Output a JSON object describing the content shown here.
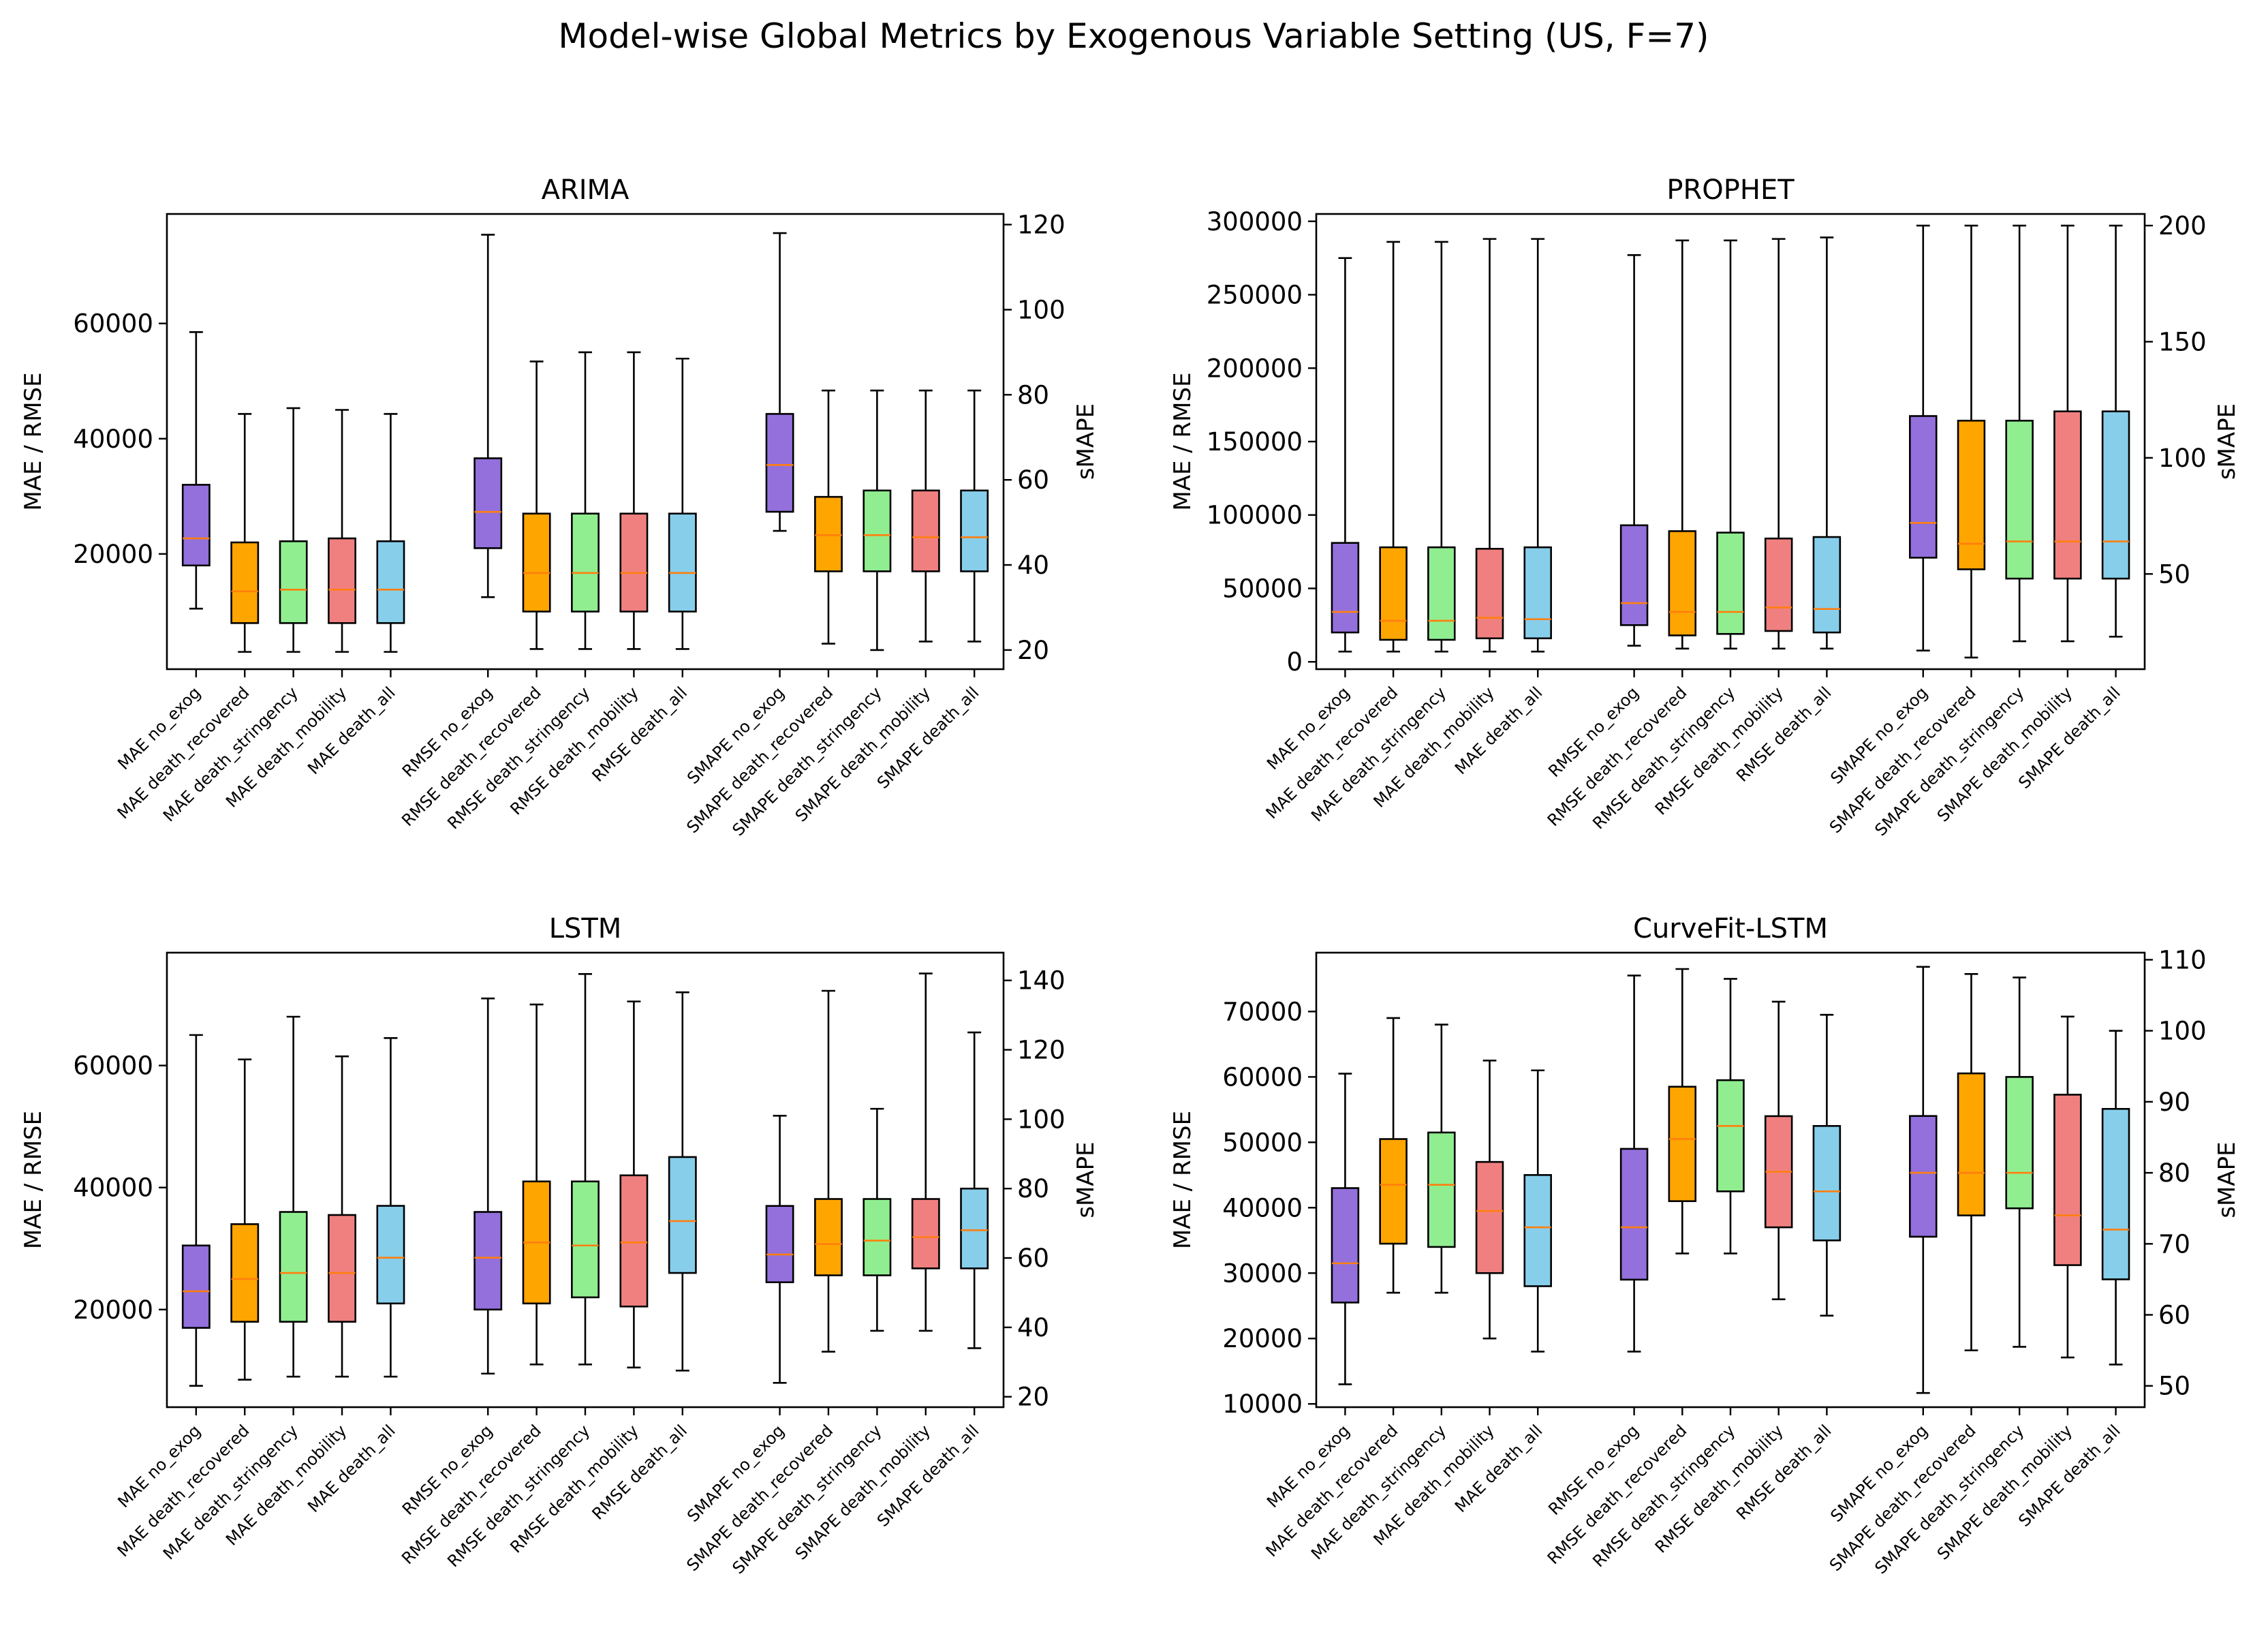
{
  "figure": {
    "title": "Model-wise Global Metrics by Exogenous Variable Setting (US, F=7)"
  },
  "chart_data": [
    {
      "type": "box",
      "title": "ARIMA",
      "ylabel": "MAE / RMSE",
      "y2label": "sMAPE",
      "ylim": [
        0,
        79000
      ],
      "yticks": [
        20000,
        40000,
        60000
      ],
      "y2lim": [
        15.5,
        122.5
      ],
      "y2ticks": [
        20,
        40,
        60,
        80,
        100,
        120
      ],
      "groups": [
        {
          "axis": "left",
          "boxes": [
            {
              "label": "MAE no_exog",
              "color": "#9370db",
              "whislo": 10500,
              "q1": 18000,
              "med": 22700,
              "q3": 32000,
              "whishi": 58500
            },
            {
              "label": "MAE death_recovered",
              "color": "#ffa500",
              "whislo": 3000,
              "q1": 8000,
              "med": 13500,
              "q3": 22000,
              "whishi": 44300
            },
            {
              "label": "MAE death_stringency",
              "color": "#90ee90",
              "whislo": 3000,
              "q1": 8000,
              "med": 13800,
              "q3": 22200,
              "whishi": 45300
            },
            {
              "label": "MAE death_mobility",
              "color": "#f08080",
              "whislo": 3000,
              "q1": 8000,
              "med": 13800,
              "q3": 22700,
              "whishi": 45000
            },
            {
              "label": "MAE death_all",
              "color": "#87ceeb",
              "whislo": 3000,
              "q1": 8000,
              "med": 13800,
              "q3": 22200,
              "whishi": 44300
            }
          ]
        },
        {
          "axis": "left",
          "boxes": [
            {
              "label": "RMSE no_exog",
              "color": "#9370db",
              "whislo": 12500,
              "q1": 21000,
              "med": 27300,
              "q3": 36600,
              "whishi": 75400
            },
            {
              "label": "RMSE death_recovered",
              "color": "#ffa500",
              "whislo": 3500,
              "q1": 10000,
              "med": 16700,
              "q3": 27000,
              "whishi": 53400
            },
            {
              "label": "RMSE death_stringency",
              "color": "#90ee90",
              "whislo": 3500,
              "q1": 10000,
              "med": 16700,
              "q3": 27000,
              "whishi": 55000
            },
            {
              "label": "RMSE death_mobility",
              "color": "#f08080",
              "whislo": 3500,
              "q1": 10000,
              "med": 16700,
              "q3": 27000,
              "whishi": 55000
            },
            {
              "label": "RMSE death_all",
              "color": "#87ceeb",
              "whislo": 3500,
              "q1": 10000,
              "med": 16700,
              "q3": 27000,
              "whishi": 53900
            }
          ]
        },
        {
          "axis": "right",
          "boxes": [
            {
              "label": "SMAPE no_exog",
              "color": "#9370db",
              "whislo": 48,
              "q1": 52.5,
              "med": 63.5,
              "q3": 75.5,
              "whishi": 118
            },
            {
              "label": "SMAPE death_recovered",
              "color": "#ffa500",
              "whislo": 21.5,
              "q1": 38.5,
              "med": 47,
              "q3": 56,
              "whishi": 81
            },
            {
              "label": "SMAPE death_stringency",
              "color": "#90ee90",
              "whislo": 20,
              "q1": 38.5,
              "med": 47,
              "q3": 57.5,
              "whishi": 81
            },
            {
              "label": "SMAPE death_mobility",
              "color": "#f08080",
              "whislo": 22,
              "q1": 38.5,
              "med": 46.5,
              "q3": 57.5,
              "whishi": 81
            },
            {
              "label": "SMAPE death_all",
              "color": "#87ceeb",
              "whislo": 22,
              "q1": 38.5,
              "med": 46.5,
              "q3": 57.5,
              "whishi": 81
            }
          ]
        }
      ]
    },
    {
      "type": "box",
      "title": "PROPHET",
      "ylabel": "MAE / RMSE",
      "y2label": "sMAPE",
      "ylim": [
        -5000,
        305000
      ],
      "yticks": [
        0,
        50000,
        100000,
        150000,
        200000,
        250000,
        300000
      ],
      "y2lim": [
        9,
        205
      ],
      "y2ticks": [
        50,
        100,
        150,
        200
      ],
      "groups": [
        {
          "axis": "left",
          "boxes": [
            {
              "label": "MAE no_exog",
              "color": "#9370db",
              "whislo": 7000,
              "q1": 20000,
              "med": 34000,
              "q3": 81000,
              "whishi": 275000
            },
            {
              "label": "MAE death_recovered",
              "color": "#ffa500",
              "whislo": 7000,
              "q1": 15000,
              "med": 28000,
              "q3": 78000,
              "whishi": 286000
            },
            {
              "label": "MAE death_stringency",
              "color": "#90ee90",
              "whislo": 7000,
              "q1": 15000,
              "med": 28000,
              "q3": 78000,
              "whishi": 286000
            },
            {
              "label": "MAE death_mobility",
              "color": "#f08080",
              "whislo": 7000,
              "q1": 16000,
              "med": 30000,
              "q3": 77000,
              "whishi": 288000
            },
            {
              "label": "MAE death_all",
              "color": "#87ceeb",
              "whislo": 7000,
              "q1": 16000,
              "med": 29000,
              "q3": 78000,
              "whishi": 288000
            }
          ]
        },
        {
          "axis": "left",
          "boxes": [
            {
              "label": "RMSE no_exog",
              "color": "#9370db",
              "whislo": 11000,
              "q1": 25000,
              "med": 40000,
              "q3": 93000,
              "whishi": 277000
            },
            {
              "label": "RMSE death_recovered",
              "color": "#ffa500",
              "whislo": 9000,
              "q1": 18000,
              "med": 34000,
              "q3": 89000,
              "whishi": 287000
            },
            {
              "label": "RMSE death_stringency",
              "color": "#90ee90",
              "whislo": 9000,
              "q1": 19000,
              "med": 34000,
              "q3": 88000,
              "whishi": 287000
            },
            {
              "label": "RMSE death_mobility",
              "color": "#f08080",
              "whislo": 9000,
              "q1": 21000,
              "med": 37000,
              "q3": 84000,
              "whishi": 288000
            },
            {
              "label": "RMSE death_all",
              "color": "#87ceeb",
              "whislo": 9000,
              "q1": 20000,
              "med": 36000,
              "q3": 85000,
              "whishi": 289000
            }
          ]
        },
        {
          "axis": "right",
          "boxes": [
            {
              "label": "SMAPE no_exog",
              "color": "#9370db",
              "whislo": 17,
              "q1": 57,
              "med": 72,
              "q3": 118,
              "whishi": 200
            },
            {
              "label": "SMAPE death_recovered",
              "color": "#ffa500",
              "whislo": 14,
              "q1": 52,
              "med": 63,
              "q3": 116,
              "whishi": 200
            },
            {
              "label": "SMAPE death_stringency",
              "color": "#90ee90",
              "whislo": 21,
              "q1": 48,
              "med": 64,
              "q3": 116,
              "whishi": 200
            },
            {
              "label": "SMAPE death_mobility",
              "color": "#f08080",
              "whislo": 21,
              "q1": 48,
              "med": 64,
              "q3": 120,
              "whishi": 200
            },
            {
              "label": "SMAPE death_all",
              "color": "#87ceeb",
              "whislo": 23,
              "q1": 48,
              "med": 64,
              "q3": 120,
              "whishi": 200
            }
          ]
        }
      ]
    },
    {
      "type": "box",
      "title": "LSTM",
      "ylabel": "MAE / RMSE",
      "y2label": "sMAPE",
      "ylim": [
        4000,
        78500
      ],
      "yticks": [
        20000,
        40000,
        60000
      ],
      "y2lim": [
        17,
        148
      ],
      "y2ticks": [
        20,
        40,
        60,
        80,
        100,
        120,
        140
      ],
      "groups": [
        {
          "axis": "left",
          "boxes": [
            {
              "label": "MAE no_exog",
              "color": "#9370db",
              "whislo": 7500,
              "q1": 17000,
              "med": 23000,
              "q3": 30500,
              "whishi": 65000
            },
            {
              "label": "MAE death_recovered",
              "color": "#ffa500",
              "whislo": 8500,
              "q1": 18000,
              "med": 25000,
              "q3": 34000,
              "whishi": 61000
            },
            {
              "label": "MAE death_stringency",
              "color": "#90ee90",
              "whislo": 9000,
              "q1": 18000,
              "med": 26000,
              "q3": 36000,
              "whishi": 68000
            },
            {
              "label": "MAE death_mobility",
              "color": "#f08080",
              "whislo": 9000,
              "q1": 18000,
              "med": 26000,
              "q3": 35500,
              "whishi": 61500
            },
            {
              "label": "MAE death_all",
              "color": "#87ceeb",
              "whislo": 9000,
              "q1": 21000,
              "med": 28500,
              "q3": 37000,
              "whishi": 64500
            }
          ]
        },
        {
          "axis": "left",
          "boxes": [
            {
              "label": "RMSE no_exog",
              "color": "#9370db",
              "whislo": 9500,
              "q1": 20000,
              "med": 28500,
              "q3": 36000,
              "whishi": 71000
            },
            {
              "label": "RMSE death_recovered",
              "color": "#ffa500",
              "whislo": 11000,
              "q1": 21000,
              "med": 31000,
              "q3": 41000,
              "whishi": 70000
            },
            {
              "label": "RMSE death_stringency",
              "color": "#90ee90",
              "whislo": 11000,
              "q1": 22000,
              "med": 30500,
              "q3": 41000,
              "whishi": 75000
            },
            {
              "label": "RMSE death_mobility",
              "color": "#f08080",
              "whislo": 10500,
              "q1": 20500,
              "med": 31000,
              "q3": 42000,
              "whishi": 70500
            },
            {
              "label": "RMSE death_all",
              "color": "#87ceeb",
              "whislo": 10000,
              "q1": 26000,
              "med": 34500,
              "q3": 45000,
              "whishi": 72000
            }
          ]
        },
        {
          "axis": "right",
          "boxes": [
            {
              "label": "SMAPE no_exog",
              "color": "#9370db",
              "whislo": 24,
              "q1": 53,
              "med": 61,
              "q3": 75,
              "whishi": 101
            },
            {
              "label": "SMAPE death_recovered",
              "color": "#ffa500",
              "whislo": 33,
              "q1": 55,
              "med": 64,
              "q3": 77,
              "whishi": 137
            },
            {
              "label": "SMAPE death_stringency",
              "color": "#90ee90",
              "whislo": 39,
              "q1": 55,
              "med": 65,
              "q3": 77,
              "whishi": 103
            },
            {
              "label": "SMAPE death_mobility",
              "color": "#f08080",
              "whislo": 39,
              "q1": 57,
              "med": 66,
              "q3": 77,
              "whishi": 142
            },
            {
              "label": "SMAPE death_all",
              "color": "#87ceeb",
              "whislo": 34,
              "q1": 57,
              "med": 68,
              "q3": 80,
              "whishi": 125
            }
          ]
        }
      ]
    },
    {
      "type": "box",
      "title": "CurveFit-LSTM",
      "ylabel": "MAE / RMSE",
      "y2label": "sMAPE",
      "ylim": [
        9500,
        79000
      ],
      "yticks": [
        10000,
        20000,
        30000,
        40000,
        50000,
        60000,
        70000
      ],
      "y2lim": [
        47,
        111
      ],
      "y2ticks": [
        50,
        60,
        70,
        80,
        90,
        100,
        110
      ],
      "groups": [
        {
          "axis": "left",
          "boxes": [
            {
              "label": "MAE no_exog",
              "color": "#9370db",
              "whislo": 13000,
              "q1": 25500,
              "med": 31500,
              "q3": 43000,
              "whishi": 60500
            },
            {
              "label": "MAE death_recovered",
              "color": "#ffa500",
              "whislo": 27000,
              "q1": 34500,
              "med": 43500,
              "q3": 50500,
              "whishi": 69000
            },
            {
              "label": "MAE death_stringency",
              "color": "#90ee90",
              "whislo": 27000,
              "q1": 34000,
              "med": 43500,
              "q3": 51500,
              "whishi": 68000
            },
            {
              "label": "MAE death_mobility",
              "color": "#f08080",
              "whislo": 20000,
              "q1": 30000,
              "med": 39500,
              "q3": 47000,
              "whishi": 62500
            },
            {
              "label": "MAE death_all",
              "color": "#87ceeb",
              "whislo": 18000,
              "q1": 28000,
              "med": 37000,
              "q3": 45000,
              "whishi": 61000
            }
          ]
        },
        {
          "axis": "left",
          "boxes": [
            {
              "label": "RMSE no_exog",
              "color": "#9370db",
              "whislo": 18000,
              "q1": 29000,
              "med": 37000,
              "q3": 49000,
              "whishi": 75500
            },
            {
              "label": "RMSE death_recovered",
              "color": "#ffa500",
              "whislo": 33000,
              "q1": 41000,
              "med": 50500,
              "q3": 58500,
              "whishi": 76500
            },
            {
              "label": "RMSE death_stringency",
              "color": "#90ee90",
              "whislo": 33000,
              "q1": 42500,
              "med": 52500,
              "q3": 59500,
              "whishi": 75000
            },
            {
              "label": "RMSE death_mobility",
              "color": "#f08080",
              "whislo": 26000,
              "q1": 37000,
              "med": 45500,
              "q3": 54000,
              "whishi": 71500
            },
            {
              "label": "RMSE death_all",
              "color": "#87ceeb",
              "whislo": 23500,
              "q1": 35000,
              "med": 42500,
              "q3": 52500,
              "whishi": 69500
            }
          ]
        },
        {
          "axis": "right",
          "boxes": [
            {
              "label": "SMAPE no_exog",
              "color": "#9370db",
              "whislo": 49,
              "q1": 71,
              "med": 80,
              "q3": 88,
              "whishi": 109
            },
            {
              "label": "SMAPE death_recovered",
              "color": "#ffa500",
              "whislo": 55,
              "q1": 74,
              "med": 80,
              "q3": 94,
              "whishi": 108
            },
            {
              "label": "SMAPE death_stringency",
              "color": "#90ee90",
              "whislo": 55.5,
              "q1": 75,
              "med": 80,
              "q3": 93.5,
              "whishi": 107.5
            },
            {
              "label": "SMAPE death_mobility",
              "color": "#f08080",
              "whislo": 54,
              "q1": 67,
              "med": 74,
              "q3": 91,
              "whishi": 102
            },
            {
              "label": "SMAPE death_all",
              "color": "#87ceeb",
              "whislo": 53,
              "q1": 65,
              "med": 72,
              "q3": 89,
              "whishi": 100
            }
          ]
        }
      ]
    }
  ]
}
